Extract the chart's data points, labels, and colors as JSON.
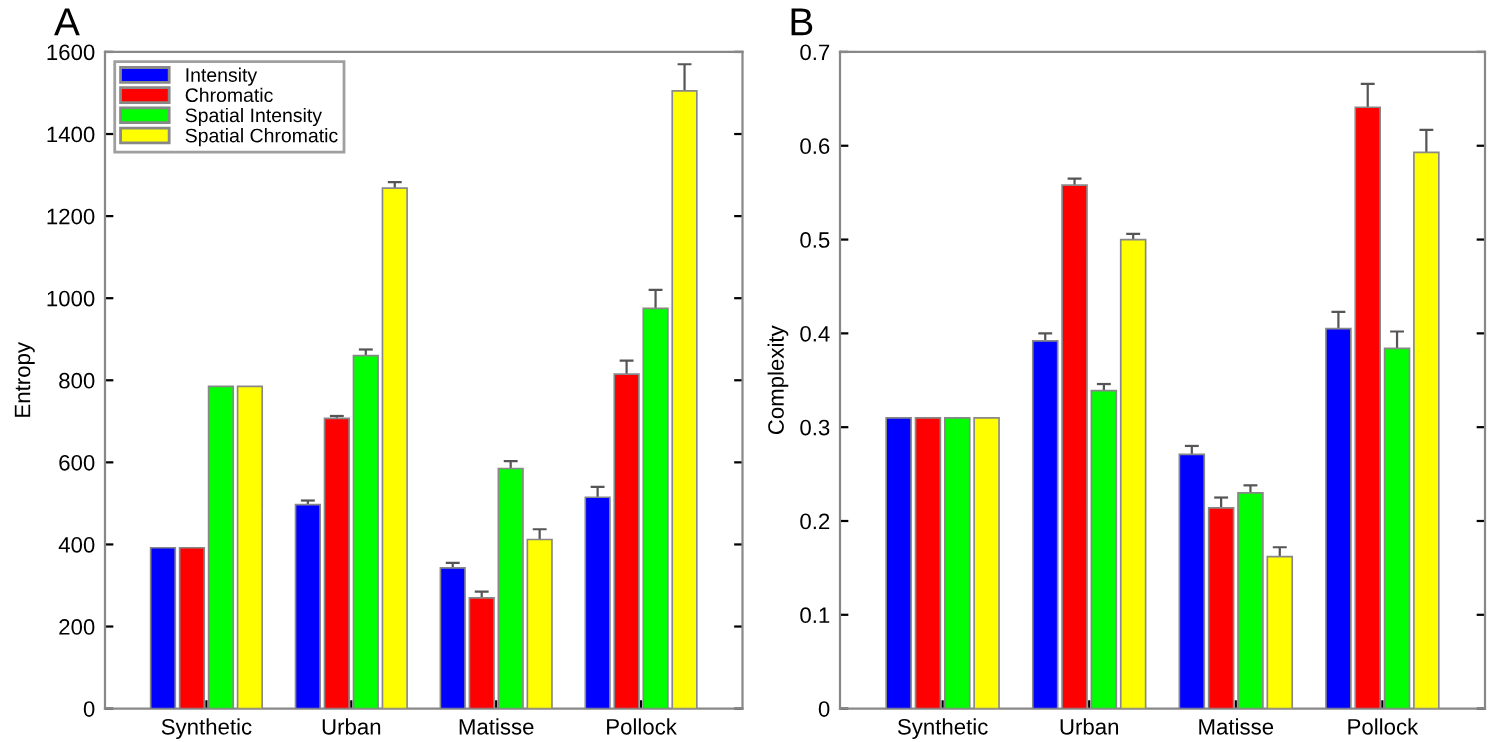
{
  "chart_data": [
    {
      "type": "bar",
      "title": "A",
      "ylabel": "Entropy",
      "categories": [
        "Synthetic",
        "Urban",
        "Matisse",
        "Pollock"
      ],
      "ylim": [
        0,
        1600
      ],
      "yticks": [
        0,
        200,
        400,
        600,
        800,
        1000,
        1200,
        1400,
        1600
      ],
      "grid": false,
      "legend": "top left",
      "series": [
        {
          "name": "Intensity",
          "color": "#0000ff",
          "values": [
            392,
            497,
            343,
            515
          ],
          "errors": [
            null,
            10,
            12,
            25
          ]
        },
        {
          "name": "Chromatic",
          "color": "#ff0000",
          "values": [
            392,
            707,
            270,
            815
          ],
          "errors": [
            null,
            6,
            15,
            33
          ]
        },
        {
          "name": "Spatial Intensity",
          "color": "#00ff00",
          "values": [
            785,
            860,
            585,
            975
          ],
          "errors": [
            null,
            15,
            18,
            45
          ]
        },
        {
          "name": "Spatial Chromatic",
          "color": "#ffff00",
          "values": [
            785,
            1268,
            412,
            1505
          ],
          "errors": [
            null,
            15,
            25,
            65
          ]
        }
      ]
    },
    {
      "type": "bar",
      "title": "B",
      "ylabel": "Complexity",
      "categories": [
        "Synthetic",
        "Urban",
        "Matisse",
        "Pollock"
      ],
      "ylim": [
        0,
        0.7
      ],
      "yticks": [
        0,
        0.1,
        0.2,
        0.3,
        0.4,
        0.5,
        0.6,
        0.7
      ],
      "grid": false,
      "series": [
        {
          "color": "#0000ff",
          "values": [
            0.31,
            0.392,
            0.271,
            0.405
          ],
          "errors": [
            null,
            0.008,
            0.009,
            0.018
          ]
        },
        {
          "color": "#ff0000",
          "values": [
            0.31,
            0.558,
            0.214,
            0.641
          ],
          "errors": [
            null,
            0.007,
            0.011,
            0.025
          ]
        },
        {
          "color": "#00ff00",
          "values": [
            0.31,
            0.339,
            0.23,
            0.384
          ],
          "errors": [
            null,
            0.007,
            0.008,
            0.018
          ]
        },
        {
          "color": "#ffff00",
          "values": [
            0.31,
            0.5,
            0.162,
            0.593
          ],
          "errors": [
            null,
            0.006,
            0.01,
            0.024
          ]
        }
      ]
    }
  ]
}
